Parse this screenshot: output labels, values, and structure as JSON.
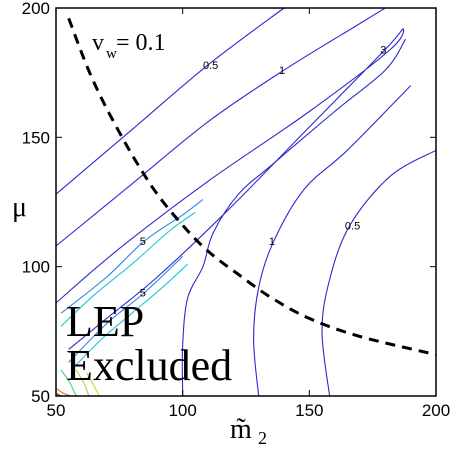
{
  "chart_data": {
    "type": "line",
    "title": "",
    "xlabel": "m̃",
    "xlabel_sub": "2",
    "ylabel": "μ",
    "xlim": [
      50,
      200
    ],
    "ylim": [
      50,
      200
    ],
    "xticks": [
      50,
      100,
      150,
      200
    ],
    "yticks": [
      50,
      100,
      150,
      200
    ],
    "grid": false,
    "legend": "none",
    "annotations": {
      "vw_label": "v",
      "vw_sub": "w",
      "vw_value": " = 0.1",
      "lep_line1": "LEP",
      "lep_line2": "Excluded"
    },
    "series": [
      {
        "label": "0.5",
        "color": "#2b2bd0",
        "points": [
          [
            50,
            128
          ],
          [
            80,
            153
          ],
          [
            110,
            178
          ],
          [
            140,
            200
          ]
        ]
      },
      {
        "label": "1",
        "color": "#2b2bd0",
        "points": [
          [
            50,
            108
          ],
          [
            80,
            132
          ],
          [
            110,
            156
          ],
          [
            140,
            176
          ],
          [
            170,
            194
          ],
          [
            180,
            200
          ]
        ]
      },
      {
        "label": "3",
        "color": "#2b2bd0",
        "points": [
          [
            50,
            86
          ],
          [
            75,
            107
          ],
          [
            110,
            133
          ],
          [
            150,
            160
          ],
          [
            182,
            184
          ],
          [
            187,
            192
          ],
          [
            180,
            184
          ],
          [
            150,
            154
          ],
          [
            118,
            122
          ],
          [
            90,
            96
          ],
          [
            70,
            80
          ],
          [
            55,
            68
          ]
        ]
      },
      {
        "label": "5",
        "color": "#2d86e0",
        "points": [
          [
            52,
            82
          ],
          [
            70,
            96
          ],
          [
            85,
            110
          ],
          [
            100,
            120
          ],
          [
            108,
            126
          ]
        ]
      },
      {
        "label": "5",
        "color": "#2d86e0",
        "points": [
          [
            55,
            63
          ],
          [
            70,
            78
          ],
          [
            85,
            90
          ],
          [
            100,
            104
          ]
        ]
      },
      {
        "label": "",
        "color": "#1fc4d6",
        "points": [
          [
            52,
            77
          ],
          [
            65,
            89
          ],
          [
            80,
            101
          ],
          [
            95,
            114
          ],
          [
            105,
            121
          ]
        ]
      },
      {
        "label": "",
        "color": "#1fc4d6",
        "points": [
          [
            56,
            60
          ],
          [
            68,
            72
          ],
          [
            80,
            82
          ],
          [
            92,
            92
          ],
          [
            102,
            101
          ]
        ]
      },
      {
        "label": "",
        "color": "#40d870",
        "points": [
          [
            52,
            60
          ],
          [
            55,
            56
          ],
          [
            57,
            52
          ],
          [
            58,
            50
          ]
        ]
      },
      {
        "label": "",
        "color": "#a8d840",
        "points": [
          [
            58,
            60
          ],
          [
            61,
            55
          ],
          [
            63,
            50
          ]
        ]
      },
      {
        "label": "",
        "color": "#e0d020",
        "points": [
          [
            62,
            59
          ],
          [
            65,
            54
          ],
          [
            67,
            50
          ]
        ]
      },
      {
        "label": "",
        "color": "#e07020",
        "points": [
          [
            50,
            53
          ],
          [
            53,
            51
          ],
          [
            56,
            50
          ]
        ]
      },
      {
        "label": "",
        "color": "#c81010",
        "points": [
          [
            50,
            51
          ],
          [
            52,
            50
          ]
        ]
      },
      {
        "label": "",
        "color": "#2b2bd0",
        "points": [
          [
            100,
            50
          ],
          [
            100,
            70
          ],
          [
            102,
            88
          ],
          [
            108,
            100
          ],
          [
            112,
            113
          ],
          [
            122,
            128
          ],
          [
            136,
            140
          ],
          [
            160,
            160
          ],
          [
            180,
            176
          ],
          [
            188,
            188
          ]
        ]
      },
      {
        "label": "1",
        "color": "#2b2bd0",
        "points": [
          [
            130,
            50
          ],
          [
            128,
            72
          ],
          [
            130,
            92
          ],
          [
            136,
            110
          ],
          [
            148,
            130
          ],
          [
            165,
            145
          ],
          [
            190,
            170
          ]
        ]
      },
      {
        "label": "0.5",
        "color": "#2b2bd0",
        "points": [
          [
            158,
            50
          ],
          [
            155,
            75
          ],
          [
            158,
            95
          ],
          [
            166,
            116
          ],
          [
            182,
            135
          ],
          [
            200,
            145
          ]
        ]
      }
    ],
    "boundary": {
      "style": "dashed",
      "color": "#000000",
      "points": [
        [
          55,
          196
        ],
        [
          62,
          178
        ],
        [
          68,
          165
        ],
        [
          75,
          152
        ],
        [
          82,
          140
        ],
        [
          90,
          128
        ],
        [
          100,
          116
        ],
        [
          110,
          106
        ],
        [
          122,
          97
        ],
        [
          135,
          88
        ],
        [
          150,
          80
        ],
        [
          170,
          73
        ],
        [
          200,
          66
        ]
      ]
    }
  }
}
